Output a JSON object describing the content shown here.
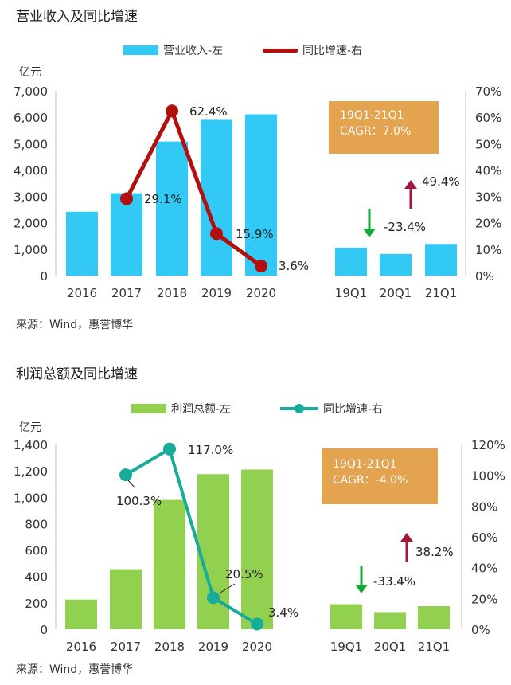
{
  "charts": [
    {
      "title": "营业收入及同比增速",
      "unit_label": "亿元",
      "source": "来源：Wind，惠誉博华",
      "legend": {
        "bar": "营业收入-左",
        "line": "同比增速-右"
      },
      "colors": {
        "bar": "#33c9f5",
        "line": "#b30f0f",
        "cagr_box": "#e3a34f",
        "up_arrow": "#a5163a",
        "down_arrow": "#14a83b"
      },
      "cagr": {
        "line1": "19Q1-21Q1",
        "line2": "CAGR：7.0%"
      },
      "quarterly_changes": [
        {
          "label": "-23.4%",
          "direction": "down"
        },
        {
          "label": "49.4%",
          "direction": "up"
        }
      ]
    },
    {
      "title": "利润总额及同比增速",
      "unit_label": "亿元",
      "source": "来源：Wind，惠誉博华",
      "legend": {
        "bar": "利润总额-左",
        "line": "同比增速-右"
      },
      "colors": {
        "bar": "#92d050",
        "line": "#17ab9a",
        "cagr_box": "#e3a34f",
        "up_arrow": "#a5163a",
        "down_arrow": "#14a83b"
      },
      "cagr": {
        "line1": "19Q1-21Q1",
        "line2": "CAGR：-4.0%"
      },
      "quarterly_changes": [
        {
          "label": "-33.4%",
          "direction": "down"
        },
        {
          "label": "38.2%",
          "direction": "up"
        }
      ]
    }
  ],
  "chart_data": [
    {
      "type": "bar",
      "title": "营业收入及同比增速",
      "categories": [
        "2016",
        "2017",
        "2018",
        "2019",
        "2020",
        "19Q1",
        "20Q1",
        "21Q1"
      ],
      "series": [
        {
          "name": "营业收入-左",
          "type": "bar",
          "axis": "left",
          "values": [
            2420,
            3120,
            5080,
            5900,
            6110,
            1060,
            820,
            1200
          ]
        },
        {
          "name": "同比增速-右",
          "type": "line",
          "axis": "right",
          "x": [
            "2017",
            "2018",
            "2019",
            "2020"
          ],
          "values": [
            29.1,
            62.4,
            15.9,
            3.6
          ],
          "labels": [
            "29.1%",
            "62.4%",
            "15.9%",
            "3.6%"
          ]
        }
      ],
      "y_left": {
        "min": 0,
        "max": 7000,
        "ticks": [
          "0",
          "1,000",
          "2,000",
          "3,000",
          "4,000",
          "5,000",
          "6,000",
          "7,000"
        ]
      },
      "y_right": {
        "min": 0,
        "max": 70,
        "ticks": [
          "0%",
          "10%",
          "20%",
          "30%",
          "40%",
          "50%",
          "60%",
          "70%"
        ]
      },
      "grid": false,
      "legend_position": "top"
    },
    {
      "type": "bar",
      "title": "利润总额及同比增速",
      "categories": [
        "2016",
        "2017",
        "2018",
        "2019",
        "2020",
        "19Q1",
        "20Q1",
        "21Q1"
      ],
      "series": [
        {
          "name": "利润总额-左",
          "type": "bar",
          "axis": "left",
          "values": [
            225,
            455,
            980,
            1175,
            1210,
            190,
            130,
            175
          ]
        },
        {
          "name": "同比增速-右",
          "type": "line",
          "axis": "right",
          "x": [
            "2017",
            "2018",
            "2019",
            "2020"
          ],
          "values": [
            100.3,
            117.0,
            20.5,
            3.4
          ],
          "labels": [
            "100.3%",
            "117.0%",
            "20.5%",
            "3.4%"
          ]
        }
      ],
      "y_left": {
        "min": 0,
        "max": 1400,
        "ticks": [
          "0",
          "200",
          "400",
          "600",
          "800",
          "1,000",
          "1,200",
          "1,400"
        ]
      },
      "y_right": {
        "min": 0,
        "max": 120,
        "ticks": [
          "0%",
          "20%",
          "40%",
          "60%",
          "80%",
          "100%",
          "120%"
        ]
      },
      "grid": false,
      "legend_position": "top"
    }
  ]
}
